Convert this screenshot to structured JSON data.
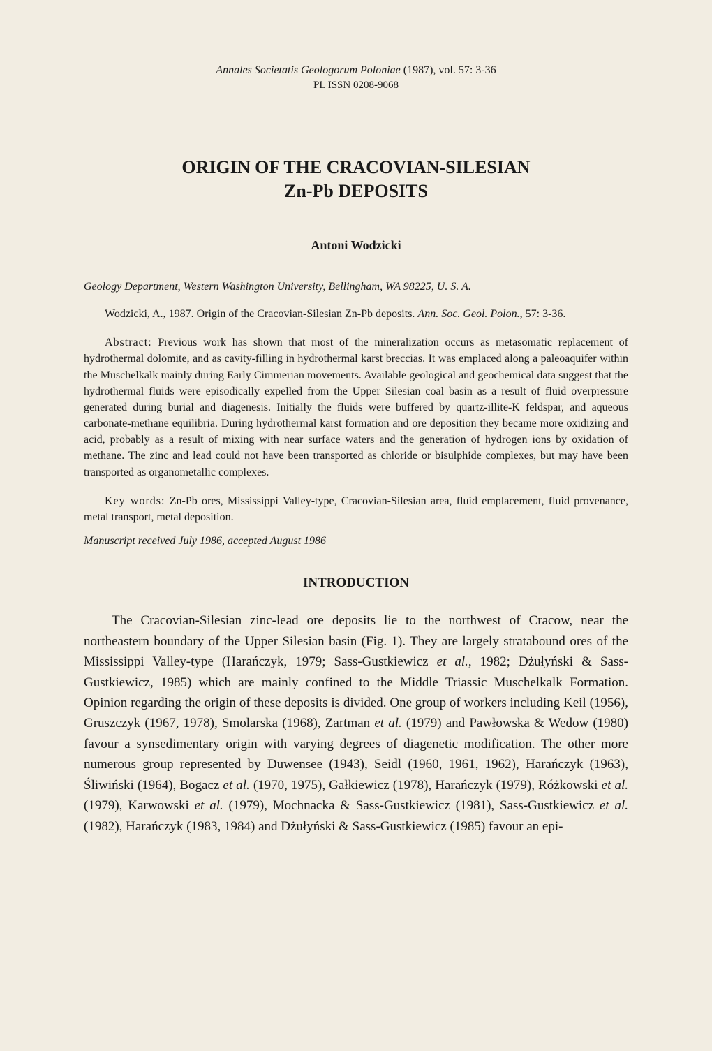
{
  "journal_header": {
    "line1_italic": "Annales Societatis Geologorum Poloniae",
    "line1_rest": " (1987), vol. 57: 3-36",
    "line2": "PL ISSN 0208-9068"
  },
  "title": {
    "line1": "ORIGIN OF THE CRACOVIAN-SILESIAN",
    "line2": "Zn-Pb DEPOSITS"
  },
  "author": "Antoni Wodzicki",
  "affiliation": "Geology Department, Western Washington University, Bellingham, WA 98225, U. S. A.",
  "citation": {
    "text_before": "Wodzicki, A., 1987. Origin of the Cracovian-Silesian Zn-Pb deposits. ",
    "italic": "Ann. Soc. Geol. Polon.",
    "text_after": ", 57: 3-36."
  },
  "abstract": {
    "label": "Abstract:",
    "text": " Previous work has shown that most of the mineralization occurs as metasomatic replacement of hydrothermal dolomite, and as cavity-filling in hydrothermal karst breccias. It was emplaced along a paleoaquifer within the Muschelkalk mainly during Early Cimmerian movements. Available geological and geochemical data suggest that the hydrothermal fluids were episodically expelled from the Upper Silesian coal basin as a result of fluid overpressure generated during burial and diagenesis. Initially the fluids were buffered by quartz-illite-K feldspar, and aqueous carbonate-methane equilibria. During hydrothermal karst formation and ore deposition they became more oxidizing and acid, probably as a result of mixing with near surface waters and the generation of hydrogen ions by oxidation of methane. The zinc and lead could not have been transported as chloride or bisulphide complexes, but may have been transported as organometallic complexes."
  },
  "keywords": {
    "label": "Key words:",
    "text": " Zn-Pb ores, Mississippi Valley-type, Cracovian-Silesian area, fluid emplacement, fluid provenance, metal transport, metal deposition."
  },
  "manuscript": "Manuscript received July 1986, accepted August 1986",
  "section_heading": "INTRODUCTION",
  "body": {
    "parts": [
      {
        "t": "plain",
        "v": "The Cracovian-Silesian zinc-lead ore deposits lie to the northwest of Cracow, near the northeastern boundary of the Upper Silesian basin (Fig. 1). They are largely stratabound ores of the Mississippi Valley-type (Harańczyk, 1979; Sass-Gustkiewicz "
      },
      {
        "t": "italic",
        "v": "et al."
      },
      {
        "t": "plain",
        "v": ", 1982; Dżułyński & Sass-Gustkiewicz, 1985) which are mainly confined to the Middle Triassic Muschelkalk Formation. Opinion regarding the origin of these deposits is divided. One group of workers including Keil (1956), Gruszczyk (1967, 1978), Smolarska (1968), Zartman "
      },
      {
        "t": "italic",
        "v": "et al."
      },
      {
        "t": "plain",
        "v": " (1979) and Pawłowska & Wedow (1980) favour a synsedimentary origin with varying degrees of diagenetic modification. The other more numerous group represented by Duwensee (1943), Seidl (1960, 1961, 1962), Harańczyk (1963), Śliwiński (1964), Bogacz "
      },
      {
        "t": "italic",
        "v": "et al."
      },
      {
        "t": "plain",
        "v": " (1970, 1975), Gałkiewicz (1978), Harańczyk (1979), Różkowski "
      },
      {
        "t": "italic",
        "v": "et al."
      },
      {
        "t": "plain",
        "v": " (1979), Karwowski "
      },
      {
        "t": "italic",
        "v": "et al."
      },
      {
        "t": "plain",
        "v": " (1979), Mochnacka & Sass-Gustkiewicz (1981), Sass-Gustkiewicz "
      },
      {
        "t": "italic",
        "v": "et al."
      },
      {
        "t": "plain",
        "v": " (1982), Harańczyk (1983, 1984) and Dżułyński & Sass-Gustkiewicz (1985) favour an epi-"
      }
    ]
  },
  "colors": {
    "background": "#f2ede2",
    "text": "#1a1a1a"
  },
  "typography": {
    "body_font": "Times New Roman",
    "title_fontsize": 26,
    "author_fontsize": 18,
    "small_fontsize": 16,
    "body_fontsize": 19
  }
}
